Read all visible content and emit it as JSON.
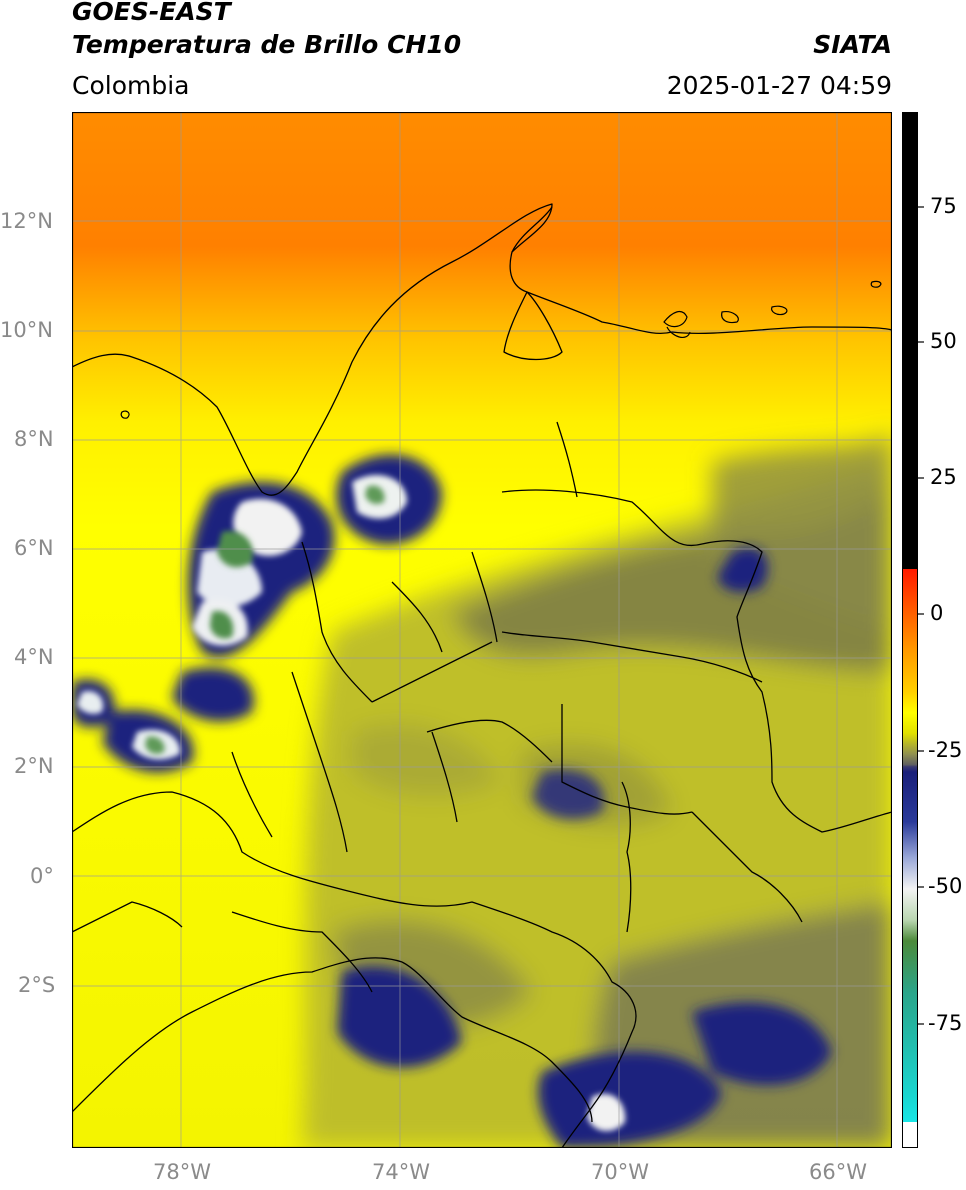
{
  "header": {
    "satellite": "GOES-EAST",
    "product": "Temperatura de Brillo CH10",
    "region": "Colombia",
    "agency": "SIATA",
    "datetime": "2025-01-27 04:59"
  },
  "map": {
    "lon_range": [
      -80,
      -65
    ],
    "lat_range": [
      -5,
      14
    ],
    "lat_ticks": [
      "12°N",
      "10°N",
      "8°N",
      "6°N",
      "4°N",
      "2°N",
      "0°",
      "2°S"
    ],
    "lon_ticks": [
      "78°W",
      "74°W",
      "70°W",
      "66°W"
    ],
    "gridlines": true
  },
  "colorbar": {
    "range": [
      -100,
      90
    ],
    "ticks": [
      "75",
      "50",
      "25",
      "0",
      "-25",
      "-50",
      "-75"
    ],
    "colors": {
      "cyan": "#19d6d1",
      "teal": "#2aa58a",
      "green": "#4c8a3a",
      "white": "#f3f3f3",
      "navy": "#1a1f7a",
      "gray": "#606060",
      "olive": "#b5b52a",
      "yellow": "#ffff00",
      "orange": "#ff9a00",
      "red": "#ff1a00",
      "black": "#000000"
    }
  }
}
